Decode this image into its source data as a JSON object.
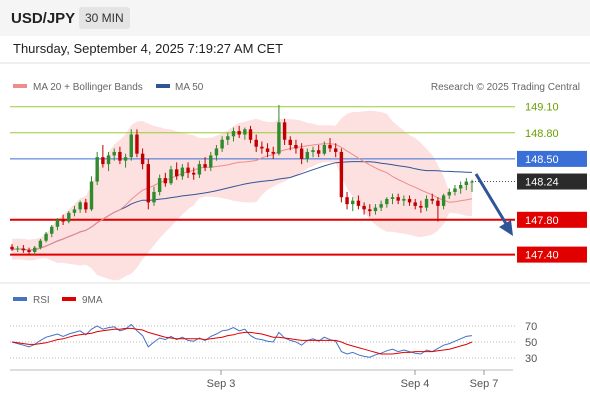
{
  "header": {
    "symbol": "USD/JPY",
    "timeframe": "30 MIN"
  },
  "datetime": "Thursday, September 4, 2025 7:19:27 AM CET",
  "legend": {
    "ma20": {
      "label": "MA 20 + Bollinger Bands",
      "color": "#f08c8c"
    },
    "ma50": {
      "label": "MA 50",
      "color": "#2f5597"
    },
    "rsi": {
      "label": "RSI",
      "color": "#4472c4"
    },
    "rsi_ma": {
      "label": "9MA",
      "color": "#e00000"
    }
  },
  "watermark": "Research © 2025 Trading Central",
  "colors": {
    "bull": "#2e8b2e",
    "bear": "#c00000",
    "resistance": "#9acd32",
    "pivot": "#3a6fd8",
    "support": "#e00000",
    "band": "#fde0e0",
    "arrow": "#2f5597"
  },
  "chart_data": [
    {
      "type": "candlestick",
      "ylim": [
        147.2,
        149.2
      ],
      "price_levels": [
        {
          "value": 149.1,
          "label": "149.10",
          "kind": "resistance"
        },
        {
          "value": 148.8,
          "label": "148.80",
          "kind": "resistance"
        },
        {
          "value": 148.5,
          "label": "148.50",
          "kind": "pivot"
        },
        {
          "value": 147.8,
          "label": "147.80",
          "kind": "support"
        },
        {
          "value": 147.4,
          "label": "147.40",
          "kind": "support"
        }
      ],
      "last_price": {
        "value": 148.24,
        "label": "148.24"
      },
      "forecast": {
        "from": 148.24,
        "to": 147.4,
        "direction": "down"
      },
      "x_ticks": [
        "Sep 3",
        "Sep 4",
        "Sep 7"
      ],
      "ohlc": [
        [
          147.49,
          147.52,
          147.44,
          147.46
        ],
        [
          147.46,
          147.5,
          147.43,
          147.47
        ],
        [
          147.47,
          147.51,
          147.42,
          147.45
        ],
        [
          147.45,
          147.48,
          147.4,
          147.43
        ],
        [
          147.43,
          147.5,
          147.4,
          147.48
        ],
        [
          147.48,
          147.58,
          147.46,
          147.56
        ],
        [
          147.56,
          147.66,
          147.54,
          147.64
        ],
        [
          147.64,
          147.74,
          147.6,
          147.72
        ],
        [
          147.72,
          147.82,
          147.68,
          147.8
        ],
        [
          147.8,
          147.86,
          147.74,
          147.78
        ],
        [
          147.78,
          147.9,
          147.76,
          147.88
        ],
        [
          147.88,
          147.96,
          147.84,
          147.92
        ],
        [
          147.92,
          148.02,
          147.88,
          148.0
        ],
        [
          148.0,
          148.04,
          147.88,
          147.92
        ],
        [
          147.92,
          148.3,
          147.9,
          148.24
        ],
        [
          148.24,
          148.58,
          148.2,
          148.52
        ],
        [
          148.52,
          148.66,
          148.4,
          148.44
        ],
        [
          148.44,
          148.58,
          148.36,
          148.54
        ],
        [
          148.54,
          148.62,
          148.48,
          148.58
        ],
        [
          148.58,
          148.64,
          148.44,
          148.48
        ],
        [
          148.48,
          148.56,
          148.4,
          148.52
        ],
        [
          148.52,
          148.84,
          148.48,
          148.78
        ],
        [
          148.78,
          148.84,
          148.52,
          148.56
        ],
        [
          148.56,
          148.62,
          148.38,
          148.44
        ],
        [
          148.44,
          148.5,
          147.92,
          148.0
        ],
        [
          148.0,
          148.18,
          147.96,
          148.12
        ],
        [
          148.12,
          148.32,
          148.08,
          148.28
        ],
        [
          148.28,
          148.34,
          148.18,
          148.22
        ],
        [
          148.22,
          148.42,
          148.2,
          148.38
        ],
        [
          148.38,
          148.46,
          148.26,
          148.3
        ],
        [
          148.3,
          148.44,
          148.26,
          148.4
        ],
        [
          148.4,
          148.46,
          148.28,
          148.34
        ],
        [
          148.34,
          148.4,
          148.26,
          148.32
        ],
        [
          148.32,
          148.48,
          148.28,
          148.44
        ],
        [
          148.44,
          148.52,
          148.36,
          148.4
        ],
        [
          148.4,
          148.58,
          148.36,
          148.54
        ],
        [
          148.54,
          148.66,
          148.48,
          148.62
        ],
        [
          148.62,
          148.76,
          148.58,
          148.72
        ],
        [
          148.72,
          148.8,
          148.66,
          148.76
        ],
        [
          148.76,
          148.86,
          148.7,
          148.82
        ],
        [
          148.82,
          148.88,
          148.74,
          148.78
        ],
        [
          148.78,
          148.86,
          148.72,
          148.84
        ],
        [
          148.84,
          148.88,
          148.68,
          148.72
        ],
        [
          148.72,
          148.78,
          148.58,
          148.64
        ],
        [
          148.64,
          148.7,
          148.56,
          148.62
        ],
        [
          148.62,
          148.68,
          148.52,
          148.58
        ],
        [
          148.58,
          148.64,
          148.5,
          148.56
        ],
        [
          148.56,
          149.12,
          148.54,
          148.92
        ],
        [
          148.92,
          148.96,
          148.66,
          148.72
        ],
        [
          148.72,
          148.76,
          148.6,
          148.66
        ],
        [
          148.66,
          148.72,
          148.56,
          148.62
        ],
        [
          148.62,
          148.68,
          148.44,
          148.5
        ],
        [
          148.5,
          148.62,
          148.46,
          148.58
        ],
        [
          148.58,
          148.64,
          148.52,
          148.6
        ],
        [
          148.6,
          148.66,
          148.52,
          148.56
        ],
        [
          148.56,
          148.7,
          148.54,
          148.66
        ],
        [
          148.66,
          148.74,
          148.58,
          148.62
        ],
        [
          148.62,
          148.68,
          148.52,
          148.58
        ],
        [
          148.58,
          148.62,
          148.0,
          148.06
        ],
        [
          148.06,
          148.12,
          147.92,
          147.98
        ],
        [
          147.98,
          148.06,
          147.9,
          148.02
        ],
        [
          148.02,
          148.08,
          147.92,
          147.96
        ],
        [
          147.96,
          148.0,
          147.86,
          147.92
        ],
        [
          147.92,
          147.98,
          147.84,
          147.9
        ],
        [
          147.9,
          147.98,
          147.86,
          147.94
        ],
        [
          147.94,
          148.02,
          147.9,
          147.98
        ],
        [
          147.98,
          148.06,
          147.94,
          148.04
        ],
        [
          148.04,
          148.1,
          147.98,
          148.06
        ],
        [
          148.06,
          148.1,
          147.98,
          148.02
        ],
        [
          148.02,
          148.08,
          147.96,
          148.04
        ],
        [
          148.04,
          148.08,
          147.96,
          148.0
        ],
        [
          148.0,
          148.04,
          147.92,
          147.96
        ],
        [
          147.96,
          148.02,
          147.88,
          147.94
        ],
        [
          147.94,
          148.08,
          147.9,
          148.04
        ],
        [
          148.04,
          148.1,
          147.98,
          148.02
        ],
        [
          148.02,
          148.06,
          147.78,
          147.96
        ],
        [
          147.96,
          148.1,
          147.92,
          148.08
        ],
        [
          148.08,
          148.16,
          148.04,
          148.12
        ],
        [
          148.12,
          148.2,
          148.08,
          148.16
        ],
        [
          148.16,
          148.24,
          148.1,
          148.2
        ],
        [
          148.2,
          148.28,
          148.14,
          148.24
        ],
        [
          148.24,
          148.26,
          148.12,
          148.24
        ]
      ]
    },
    {
      "type": "line",
      "title": "RSI",
      "ylim": [
        20,
        80
      ],
      "y_ticks": [
        70,
        50,
        30
      ],
      "series": [
        {
          "name": "RSI",
          "values": [
            50,
            48,
            46,
            44,
            47,
            52,
            56,
            58,
            60,
            57,
            60,
            62,
            64,
            59,
            66,
            70,
            66,
            68,
            69,
            64,
            66,
            72,
            64,
            58,
            44,
            50,
            55,
            53,
            57,
            53,
            56,
            52,
            51,
            55,
            52,
            57,
            60,
            64,
            65,
            68,
            64,
            66,
            58,
            54,
            53,
            51,
            50,
            62,
            55,
            52,
            50,
            46,
            52,
            54,
            51,
            56,
            53,
            51,
            38,
            35,
            37,
            34,
            32,
            31,
            34,
            36,
            39,
            41,
            38,
            40,
            38,
            36,
            35,
            40,
            38,
            42,
            46,
            48,
            51,
            54,
            57,
            58
          ]
        },
        {
          "name": "9MA",
          "values": [
            50,
            49,
            48,
            47,
            47,
            48,
            49,
            51,
            53,
            54,
            56,
            58,
            59,
            60,
            61,
            63,
            64,
            65,
            66,
            66,
            67,
            67,
            66,
            65,
            62,
            60,
            58,
            56,
            55,
            54,
            54,
            54,
            54,
            54,
            53,
            54,
            55,
            56,
            58,
            59,
            61,
            62,
            62,
            61,
            60,
            58,
            56,
            56,
            55,
            54,
            53,
            52,
            52,
            52,
            52,
            52,
            52,
            52,
            50,
            47,
            45,
            43,
            41,
            39,
            37,
            35,
            35,
            35,
            36,
            37,
            37,
            38,
            38,
            38,
            38,
            39,
            40,
            41,
            43,
            45,
            47,
            50
          ]
        }
      ]
    }
  ]
}
